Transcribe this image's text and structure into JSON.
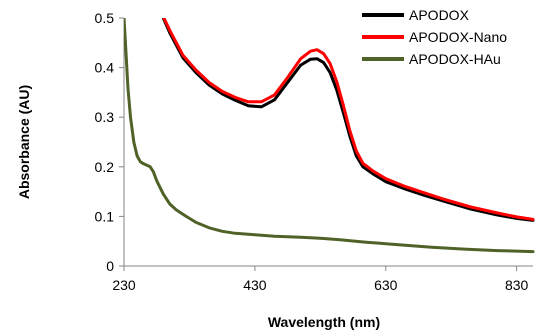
{
  "chart_data": {
    "type": "line",
    "xlabel": "Wavelength (nm)",
    "ylabel": "Absorbance (AU)",
    "xlim": [
      230,
      855
    ],
    "ylim": [
      0,
      0.5
    ],
    "xticks": [
      "230",
      "430",
      "630",
      "830"
    ],
    "yticks": [
      "0",
      "0.1",
      "0.2",
      "0.3",
      "0.4",
      "0.5"
    ],
    "grid": false,
    "legend_position": "top-right",
    "series": [
      {
        "name": "APODOX",
        "color": "#000000",
        "points": [
          [
            290,
            0.5
          ],
          [
            300,
            0.47
          ],
          [
            320,
            0.42
          ],
          [
            340,
            0.39
          ],
          [
            360,
            0.365
          ],
          [
            380,
            0.347
          ],
          [
            400,
            0.334
          ],
          [
            420,
            0.323
          ],
          [
            440,
            0.321
          ],
          [
            460,
            0.335
          ],
          [
            480,
            0.37
          ],
          [
            500,
            0.405
          ],
          [
            515,
            0.417
          ],
          [
            525,
            0.418
          ],
          [
            535,
            0.41
          ],
          [
            545,
            0.39
          ],
          [
            555,
            0.355
          ],
          [
            565,
            0.31
          ],
          [
            575,
            0.262
          ],
          [
            585,
            0.222
          ],
          [
            595,
            0.2
          ],
          [
            610,
            0.186
          ],
          [
            630,
            0.17
          ],
          [
            660,
            0.155
          ],
          [
            690,
            0.142
          ],
          [
            720,
            0.13
          ],
          [
            760,
            0.115
          ],
          [
            800,
            0.103
          ],
          [
            830,
            0.096
          ],
          [
            855,
            0.092
          ]
        ]
      },
      {
        "name": "APODOX-Nano",
        "color": "#ff0000",
        "points": [
          [
            291,
            0.5
          ],
          [
            300,
            0.475
          ],
          [
            320,
            0.425
          ],
          [
            340,
            0.395
          ],
          [
            360,
            0.37
          ],
          [
            380,
            0.352
          ],
          [
            400,
            0.34
          ],
          [
            420,
            0.331
          ],
          [
            440,
            0.331
          ],
          [
            460,
            0.345
          ],
          [
            480,
            0.38
          ],
          [
            500,
            0.418
          ],
          [
            515,
            0.433
          ],
          [
            525,
            0.436
          ],
          [
            535,
            0.428
          ],
          [
            545,
            0.408
          ],
          [
            555,
            0.372
          ],
          [
            565,
            0.325
          ],
          [
            575,
            0.273
          ],
          [
            585,
            0.232
          ],
          [
            595,
            0.207
          ],
          [
            610,
            0.192
          ],
          [
            630,
            0.176
          ],
          [
            660,
            0.16
          ],
          [
            690,
            0.147
          ],
          [
            720,
            0.134
          ],
          [
            760,
            0.119
          ],
          [
            800,
            0.107
          ],
          [
            830,
            0.099
          ],
          [
            855,
            0.094
          ]
        ]
      },
      {
        "name": "APODOX-HAu",
        "color": "#4f6228",
        "points": [
          [
            230,
            0.5
          ],
          [
            233,
            0.43
          ],
          [
            236,
            0.36
          ],
          [
            240,
            0.3
          ],
          [
            245,
            0.25
          ],
          [
            250,
            0.222
          ],
          [
            255,
            0.21
          ],
          [
            260,
            0.206
          ],
          [
            265,
            0.203
          ],
          [
            270,
            0.2
          ],
          [
            275,
            0.19
          ],
          [
            280,
            0.172
          ],
          [
            290,
            0.145
          ],
          [
            300,
            0.125
          ],
          [
            310,
            0.113
          ],
          [
            325,
            0.1
          ],
          [
            340,
            0.088
          ],
          [
            360,
            0.077
          ],
          [
            380,
            0.07
          ],
          [
            400,
            0.066
          ],
          [
            430,
            0.063
          ],
          [
            460,
            0.06
          ],
          [
            500,
            0.058
          ],
          [
            530,
            0.056
          ],
          [
            560,
            0.053
          ],
          [
            600,
            0.048
          ],
          [
            650,
            0.043
          ],
          [
            700,
            0.038
          ],
          [
            750,
            0.034
          ],
          [
            800,
            0.031
          ],
          [
            855,
            0.029
          ]
        ]
      }
    ]
  }
}
